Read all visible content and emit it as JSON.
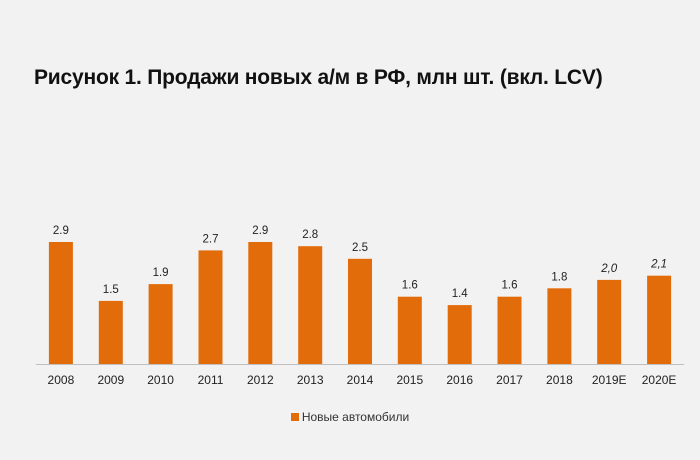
{
  "chart_data": {
    "type": "bar",
    "title": "Рисунок 1. Продажи новых а/м в РФ, млн шт. (вкл. LCV)",
    "xlabel": "",
    "ylabel": "",
    "ylim": [
      0,
      3.0
    ],
    "grid": false,
    "legend_position": "bottom-center",
    "categories": [
      "2008",
      "2009",
      "2010",
      "2011",
      "2012",
      "2013",
      "2014",
      "2015",
      "2016",
      "2017",
      "2018",
      "2019E",
      "2020E"
    ],
    "series": [
      {
        "name": "Новые автомобили",
        "values": [
          2.9,
          1.5,
          1.9,
          2.7,
          2.9,
          2.8,
          2.5,
          1.6,
          1.4,
          1.6,
          1.8,
          2.0,
          2.1
        ],
        "labels": [
          "2.9",
          "1.5",
          "1.9",
          "2.7",
          "2.9",
          "2.8",
          "2.5",
          "1.6",
          "1.4",
          "1.6",
          "1.8",
          "2,0",
          "2,1"
        ],
        "estimated": [
          false,
          false,
          false,
          false,
          false,
          false,
          false,
          false,
          false,
          false,
          false,
          true,
          true
        ],
        "color": "#e36c0a"
      }
    ]
  }
}
